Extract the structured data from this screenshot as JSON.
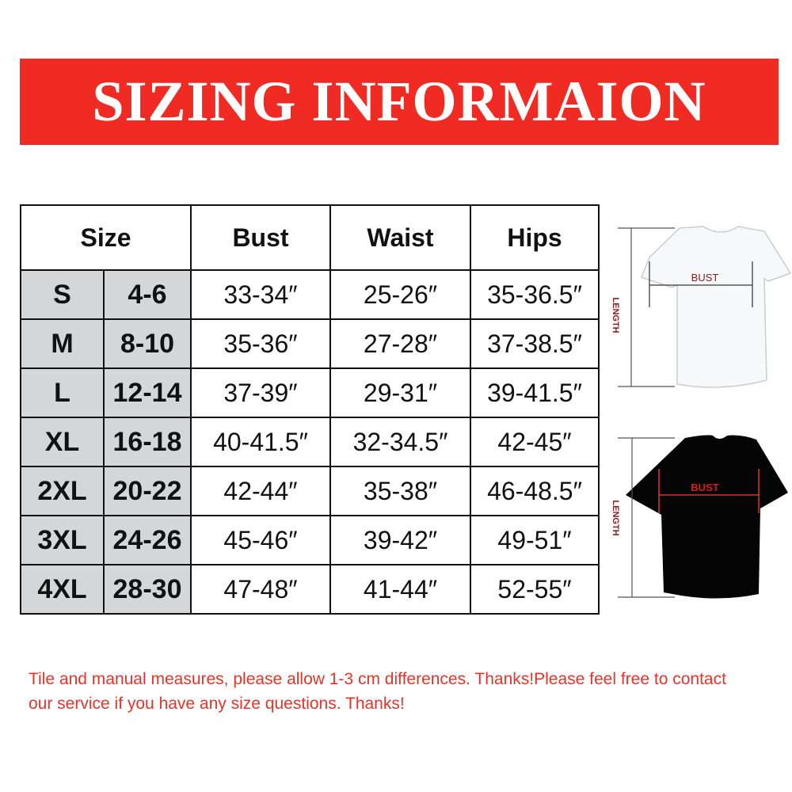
{
  "banner": {
    "title": "SIZING INFORMAION",
    "color": "#ef2b24"
  },
  "table": {
    "headers": {
      "size": "Size",
      "bust": "Bust",
      "waist": "Waist",
      "hips": "Hips"
    },
    "rows": [
      {
        "size": "S",
        "us": "4-6",
        "bust": "33-34″",
        "waist": "25-26″",
        "hips": "35-36.5″"
      },
      {
        "size": "M",
        "us": "8-10",
        "bust": "35-36″",
        "waist": "27-28″",
        "hips": "37-38.5″"
      },
      {
        "size": "L",
        "us": "12-14",
        "bust": "37-39″",
        "waist": "29-31″",
        "hips": "39-41.5″"
      },
      {
        "size": "XL",
        "us": "16-18",
        "bust": "40-41.5″",
        "waist": "32-34.5″",
        "hips": "42-45″"
      },
      {
        "size": "2XL",
        "us": "20-22",
        "bust": "42-44″",
        "waist": "35-38″",
        "hips": "46-48.5″"
      },
      {
        "size": "3XL",
        "us": "24-26",
        "bust": "45-46″",
        "waist": "39-42″",
        "hips": "49-51″"
      },
      {
        "size": "4XL",
        "us": "28-30",
        "bust": "47-48″",
        "waist": "41-44″",
        "hips": "52-55″"
      }
    ]
  },
  "diagram": {
    "white_shirt": {
      "bust": "BUST",
      "length": "LENGTH"
    },
    "black_shirt": {
      "bust": "BUST",
      "length": "LENGTH"
    }
  },
  "note": "Tile and manual measures, please allow 1-3 cm differences. Thanks!Please feel free to contact our service if you have any size questions. Thanks!"
}
